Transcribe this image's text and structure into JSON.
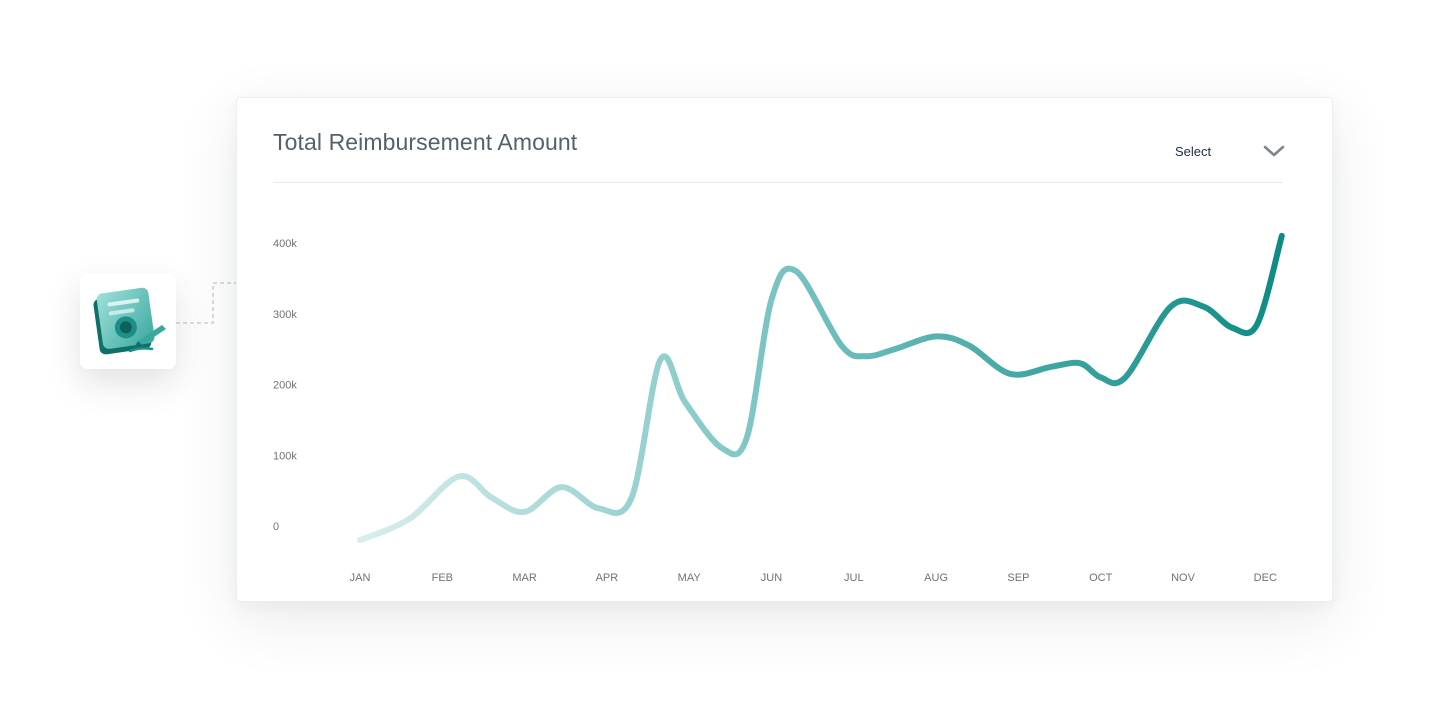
{
  "card": {
    "title": "Total Reimbursement Amount",
    "select_label": "Select"
  },
  "icons": {
    "badge": "document-signature-icon",
    "dropdown": "chevron-down-icon"
  },
  "colors": {
    "line_start": "#d8eeed",
    "line_mid": "#6fbfbe",
    "line_end": "#0d8b84"
  },
  "chart_data": {
    "type": "line",
    "title": "Total Reimbursement Amount",
    "xlabel": "",
    "ylabel": "",
    "categories": [
      "JAN",
      "FEB",
      "MAR",
      "APR",
      "MAY",
      "JUN",
      "JUL",
      "AUG",
      "SEP",
      "OCT",
      "NOV",
      "DEC"
    ],
    "y_ticks": [
      "0",
      "100k",
      "200k",
      "300k",
      "400k"
    ],
    "ylim": [
      0,
      400000
    ],
    "grid": false,
    "legend": "none",
    "series": [
      {
        "x": [
          0,
          0.6,
          1.2,
          1.6,
          2.0,
          2.45,
          2.9,
          3.3,
          3.65,
          3.95,
          4.4,
          4.7,
          5.0,
          5.3,
          5.85,
          6.15,
          6.5,
          7.0,
          7.4,
          7.9,
          8.4,
          8.75,
          9.0,
          9.3,
          9.85,
          10.25,
          10.6,
          10.9,
          11.2
        ],
        "y": [
          -20000,
          10000,
          70000,
          40000,
          20000,
          55000,
          25000,
          40000,
          235000,
          175000,
          110000,
          125000,
          320000,
          360000,
          255000,
          240000,
          250000,
          268000,
          255000,
          215000,
          225000,
          230000,
          210000,
          210000,
          310000,
          310000,
          280000,
          285000,
          410000
        ]
      }
    ]
  }
}
